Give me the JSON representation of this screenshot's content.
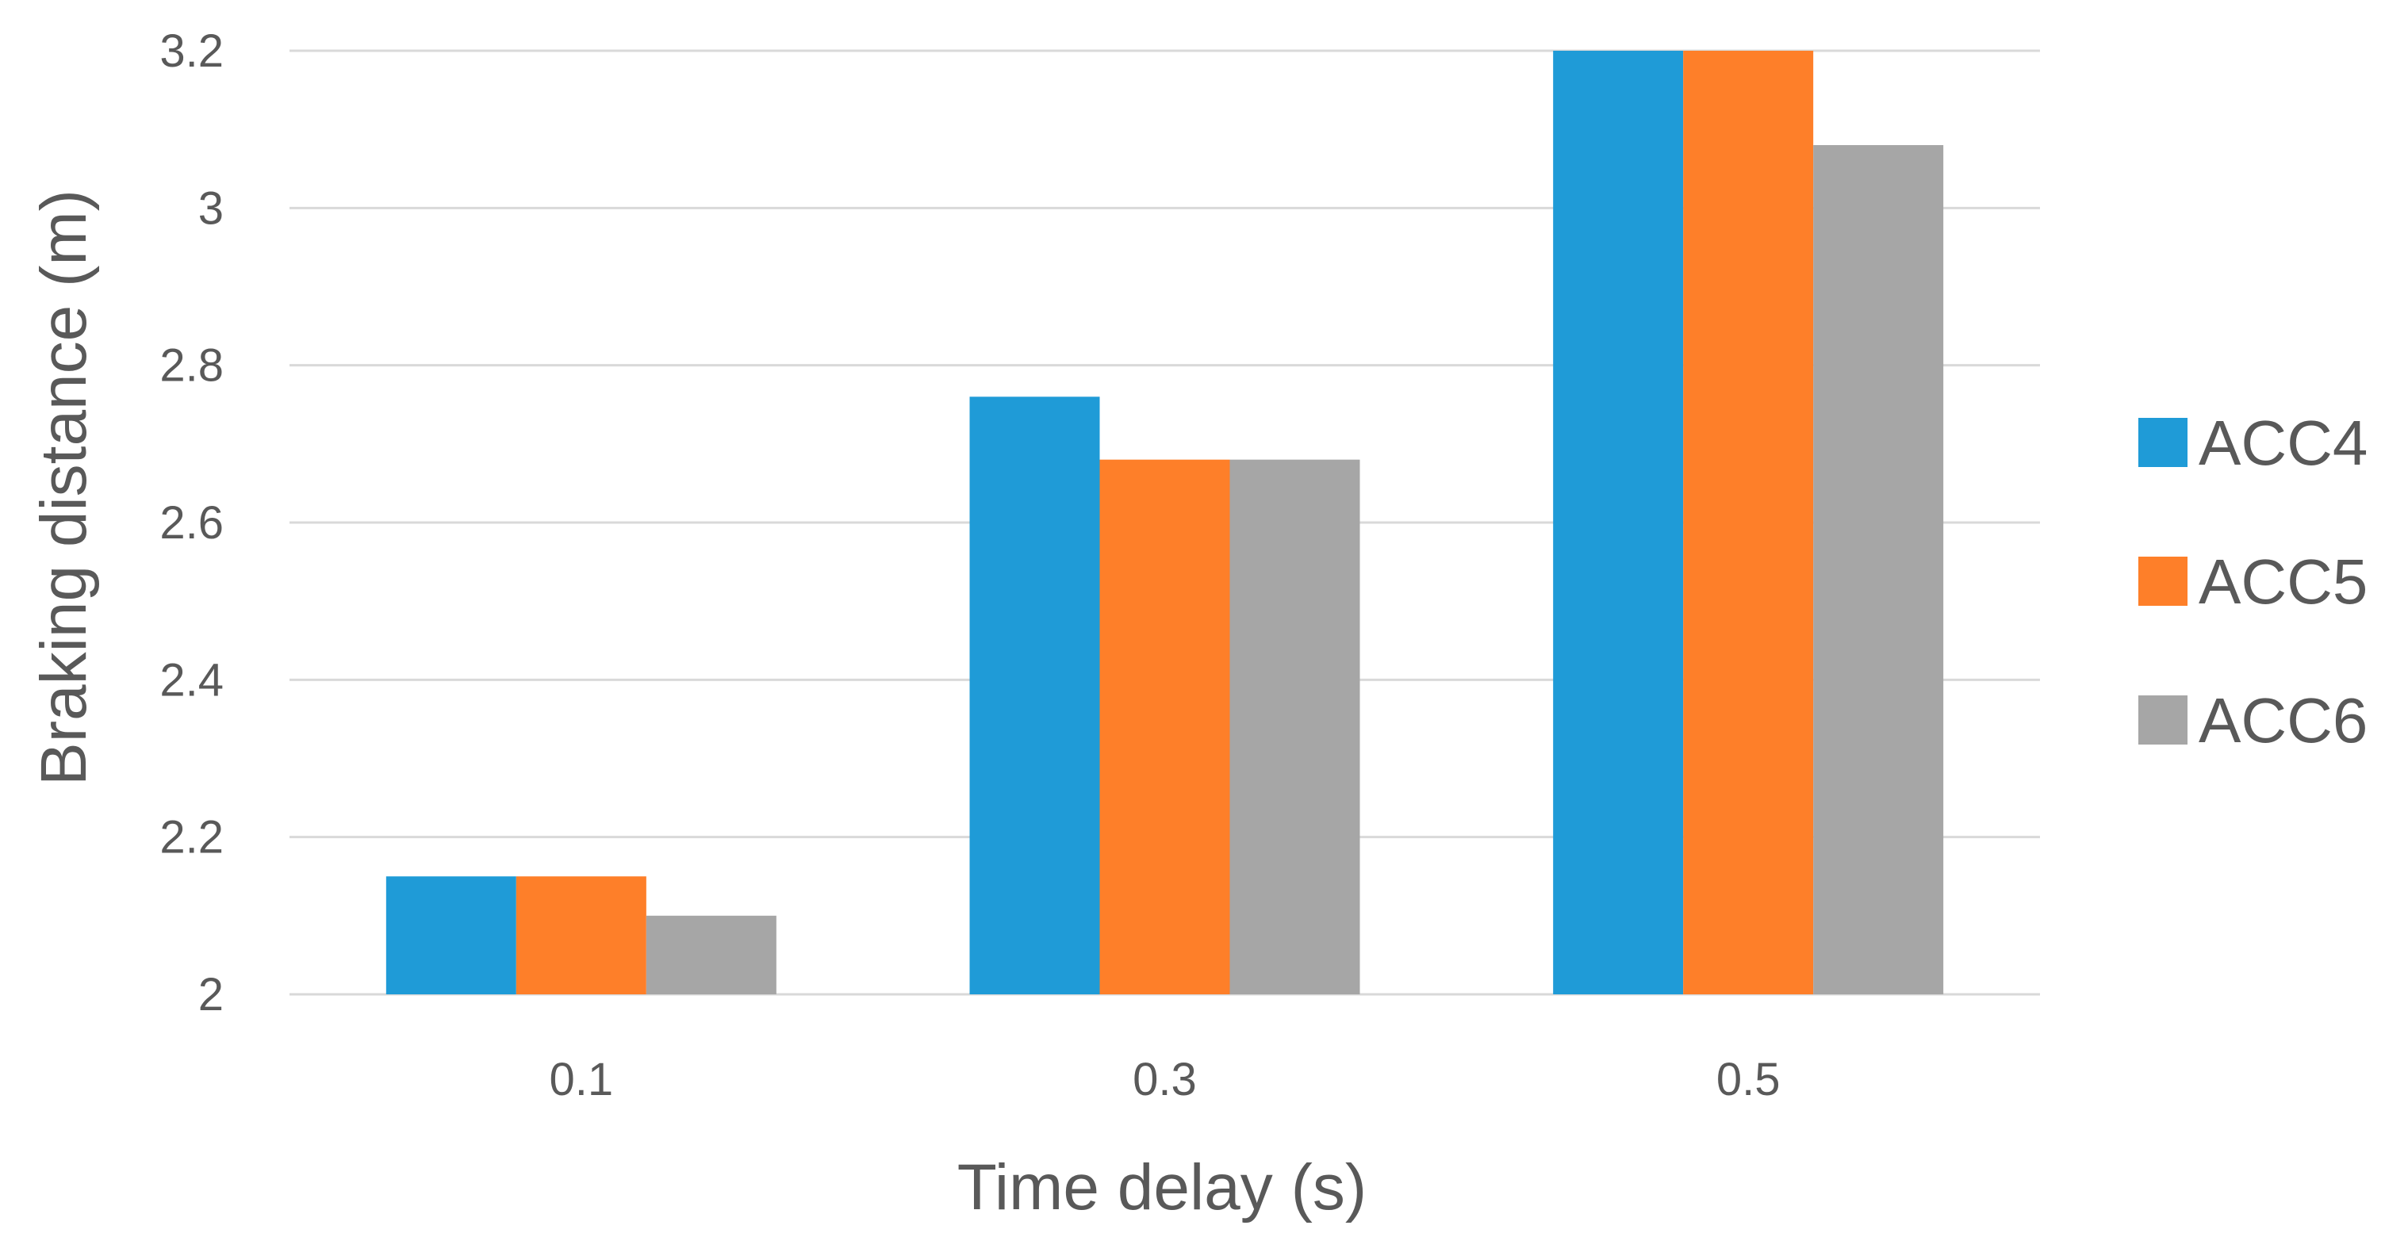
{
  "chart_data": {
    "type": "bar",
    "title": "",
    "xlabel": "Time delay (s)",
    "ylabel": "Braking distance (m)",
    "categories": [
      "0.1",
      "0.3",
      "0.5"
    ],
    "series": [
      {
        "name": "ACC4",
        "color": "#1f9bd7",
        "values": [
          2.15,
          2.76,
          3.2
        ]
      },
      {
        "name": "ACC5",
        "color": "#fe7f29",
        "values": [
          2.15,
          2.68,
          3.2
        ]
      },
      {
        "name": "ACC6",
        "color": "#a6a6a6",
        "values": [
          2.1,
          2.68,
          3.08
        ]
      }
    ],
    "ylim": [
      2,
      3.2
    ],
    "yticks": [
      "2",
      "2.2",
      "2.4",
      "2.6",
      "2.8",
      "3",
      "3.2"
    ],
    "grid": true,
    "legend_position": "right"
  }
}
